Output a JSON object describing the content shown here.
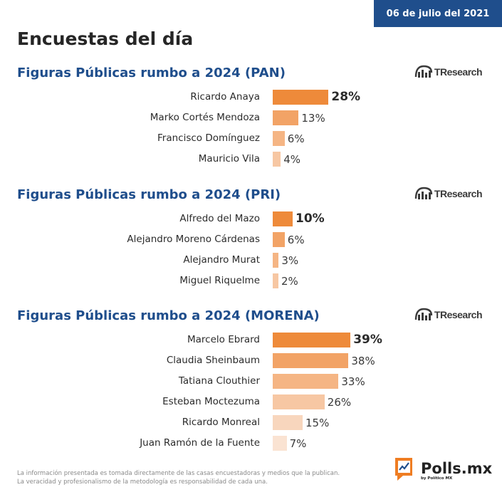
{
  "header": {
    "date": "06 de julio del 2021"
  },
  "title": "Encuestas del día",
  "source_logo": {
    "icon": "tresearch-logo-icon",
    "text": "TResearch"
  },
  "colors": {
    "title_blue": "#1f4e8c",
    "bar_levels": [
      "#ee8a3a",
      "#f2a366",
      "#f5b584",
      "#f7c7a3",
      "#f8d6bd",
      "#fae3d2"
    ]
  },
  "chart_data": [
    {
      "type": "bar",
      "orientation": "horizontal",
      "title": "Figuras Públicas rumbo a 2024 (PAN)",
      "categories": [
        "Ricardo Anaya",
        "Marko Cortés Mendoza",
        "Francisco Domínguez",
        "Mauricio Vila"
      ],
      "values": [
        28,
        13,
        6,
        4
      ],
      "labels": [
        "28%",
        "13%",
        "6%",
        "4%"
      ],
      "unit": "%"
    },
    {
      "type": "bar",
      "orientation": "horizontal",
      "title": "Figuras Públicas rumbo a 2024 (PRI)",
      "categories": [
        "Alfredo del Mazo",
        "Alejandro Moreno Cárdenas",
        "Alejandro Murat",
        "Miguel Riquelme"
      ],
      "values": [
        10,
        6,
        3,
        2
      ],
      "labels": [
        "10%",
        "6%",
        "3%",
        "2%"
      ],
      "unit": "%"
    },
    {
      "type": "bar",
      "orientation": "horizontal",
      "title": "Figuras Públicas rumbo a 2024 (MORENA)",
      "categories": [
        "Marcelo Ebrard",
        "Claudia Sheinbaum",
        "Tatiana Clouthier",
        "Esteban Moctezuma",
        "Ricardo Monreal",
        "Juan Ramón de la Fuente"
      ],
      "values": [
        39,
        38,
        33,
        26,
        15,
        7
      ],
      "labels": [
        "39%",
        "38%",
        "33%",
        "26%",
        "15%",
        "7%"
      ],
      "unit": "%"
    }
  ],
  "footer": {
    "note_line1": "La información presentada es tomada directamente de las casas encuestadoras y medios que la publican.",
    "note_line2": "La veracidad y profesionalismo de la metodología es responsabilidad de cada una.",
    "brand_icon": "polls-chart-icon",
    "brand_name": "Polls.mx",
    "brand_sub": "by Político MX"
  }
}
